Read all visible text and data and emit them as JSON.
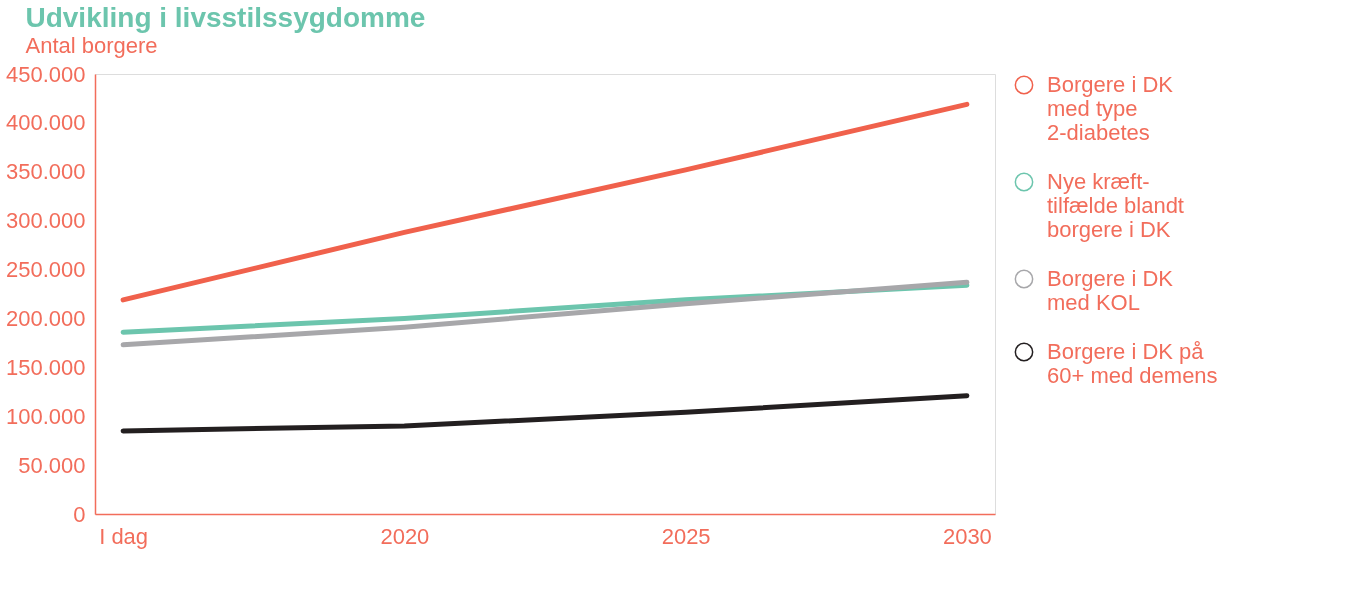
{
  "chart_data": {
    "type": "line",
    "title": "Udvikling i livsstilssygdomme",
    "subtitle": "Antal borgere",
    "categories": [
      "I dag",
      "2020",
      "2025",
      "2030"
    ],
    "series": [
      {
        "name": "Borgere i DK med type 2-diabetes",
        "color": "#f0614c",
        "values": [
          219000,
          288000,
          352000,
          419000
        ]
      },
      {
        "name": "Nye kræft-tilfælde blandt borgere i DK",
        "color": "#6cc5ad",
        "values": [
          186000,
          200000,
          219000,
          234000
        ]
      },
      {
        "name": "Borgere i DK med KOL",
        "color": "#a7a7aa",
        "values": [
          173000,
          191000,
          215000,
          237000
        ]
      },
      {
        "name": "Borgere i DK på 60+ med demens",
        "color": "#231f20",
        "values": [
          85000,
          90000,
          104000,
          121000
        ]
      }
    ],
    "ylim": [
      0,
      450000
    ],
    "yticks": [
      {
        "value": 0,
        "label": "0"
      },
      {
        "value": 50000,
        "label": "50.000"
      },
      {
        "value": 100000,
        "label": "100.000"
      },
      {
        "value": 150000,
        "label": "150.000"
      },
      {
        "value": 200000,
        "label": "200.000"
      },
      {
        "value": 250000,
        "label": "250.000"
      },
      {
        "value": 300000,
        "label": "300.000"
      },
      {
        "value": 350000,
        "label": "350.000"
      },
      {
        "value": 400000,
        "label": "400.000"
      },
      {
        "value": 450000,
        "label": "450.000"
      }
    ],
    "grid": false,
    "legend": "right",
    "marker": "none",
    "line_style": "solid"
  }
}
